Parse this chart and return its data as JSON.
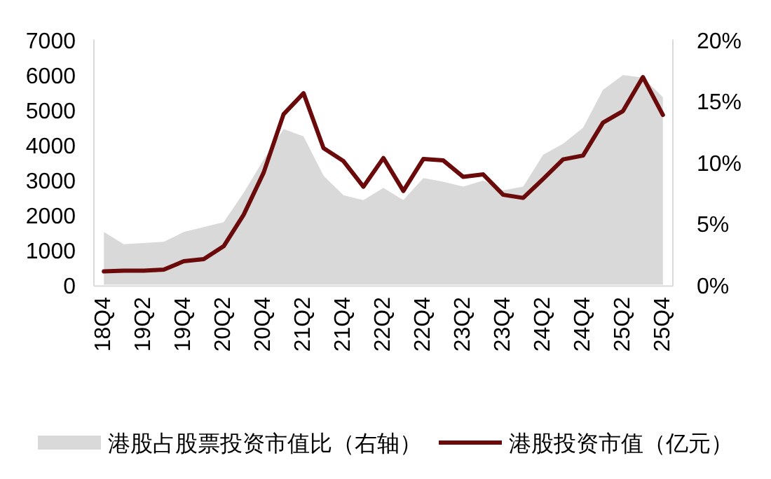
{
  "chart_data": {
    "type": "line",
    "legend": "bottom",
    "categories": [
      "18Q4",
      null,
      "19Q2",
      null,
      "19Q4",
      null,
      "20Q2",
      null,
      "20Q4",
      null,
      "21Q2",
      null,
      "21Q4",
      null,
      "22Q2",
      null,
      "22Q4",
      null,
      "23Q2",
      null,
      "23Q4",
      null,
      "24Q2",
      null,
      "24Q4",
      null,
      "25Q2",
      null,
      "25Q4"
    ],
    "series": [
      {
        "name": "港股占股票投资市值比（右轴）",
        "type": "area",
        "axis": "y2",
        "color": "#d9d9d9",
        "values": [
          4.3,
          3.3,
          3.4,
          3.5,
          4.3,
          4.7,
          5.1,
          7.5,
          10.2,
          12.7,
          12.1,
          8.9,
          7.3,
          6.9,
          7.9,
          6.9,
          8.7,
          8.4,
          8.0,
          8.5,
          7.7,
          8.0,
          10.6,
          11.5,
          12.8,
          15.9,
          17.1,
          16.9,
          15.3
        ]
      },
      {
        "name": "港股投资市值（亿元）",
        "color": "#6b0a0a",
        "values": [
          380,
          400,
          400,
          430,
          670,
          730,
          1100,
          2000,
          3200,
          4870,
          5470,
          3900,
          3530,
          2800,
          3620,
          2680,
          3590,
          3550,
          3080,
          3150,
          2570,
          2480,
          3020,
          3580,
          3690,
          4630,
          4960,
          5930,
          4850
        ]
      }
    ],
    "ylim": [
      0,
      7000
    ],
    "yticks": [
      0,
      1000,
      2000,
      3000,
      4000,
      5000,
      6000,
      7000
    ],
    "y2lim": [
      0,
      20
    ],
    "y2ticks": [
      {
        "value": 0,
        "label": "0%"
      },
      {
        "value": 5,
        "label": "5%"
      },
      {
        "value": 10,
        "label": "10%"
      },
      {
        "value": 15,
        "label": "15%"
      },
      {
        "value": 20,
        "label": "20%"
      }
    ]
  }
}
